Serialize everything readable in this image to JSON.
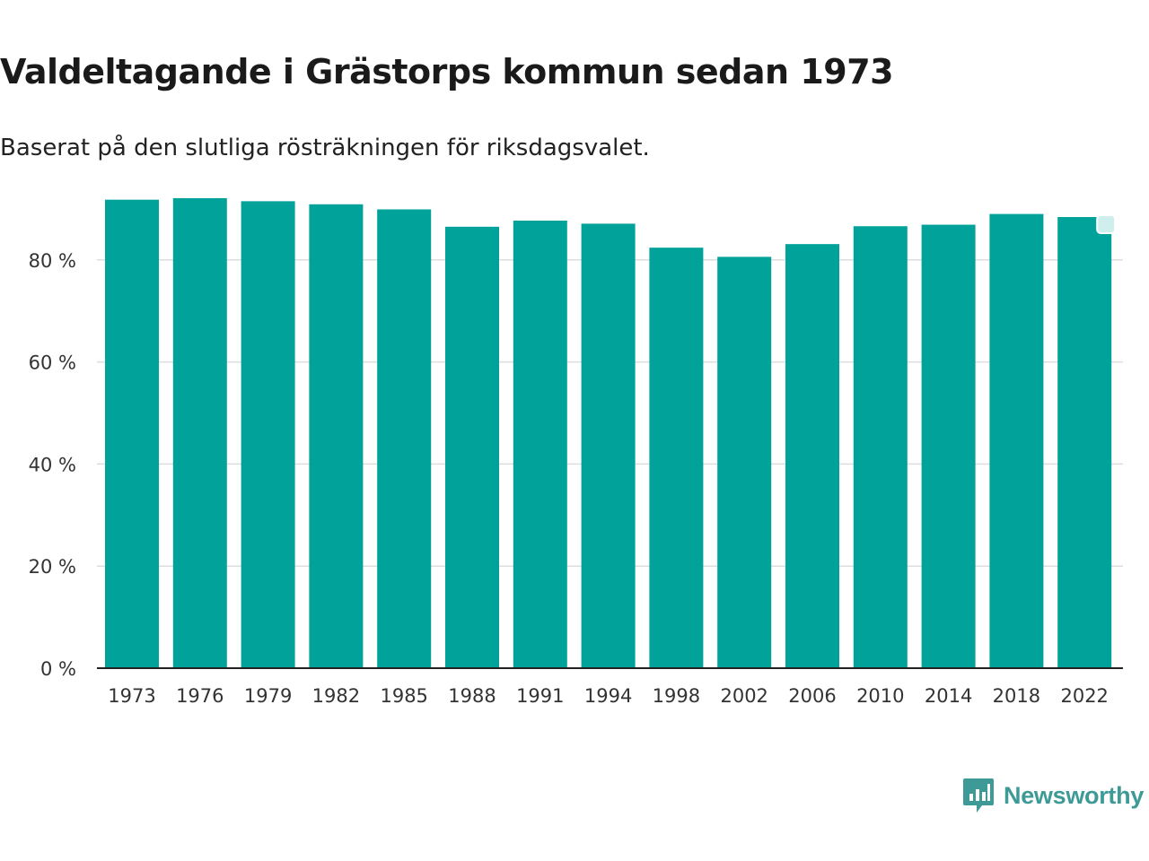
{
  "header": {
    "title": "Valdeltagande i Grästorps kommun sedan 1973",
    "subtitle": "Baserat på den slutliga rösträkningen för riksdagsvalet."
  },
  "chart_data": {
    "type": "bar",
    "categories": [
      "1973",
      "1976",
      "1979",
      "1982",
      "1985",
      "1988",
      "1991",
      "1994",
      "1998",
      "2002",
      "2006",
      "2010",
      "2014",
      "2018",
      "2022"
    ],
    "values": [
      91.8,
      92.1,
      91.5,
      90.9,
      89.9,
      86.5,
      87.7,
      87.1,
      82.4,
      80.6,
      83.1,
      86.6,
      86.9,
      89.0,
      88.4
    ],
    "title": "Valdeltagande i Grästorps kommun sedan 1973",
    "subtitle": "Baserat på den slutliga rösträkningen för riksdagsvalet.",
    "xlabel": "",
    "ylabel": "",
    "ylim": [
      0,
      100
    ],
    "yticks": [
      0,
      20,
      40,
      60,
      80
    ],
    "ytick_labels": [
      "0 %",
      "20 %",
      "40 %",
      "60 %",
      "80 %"
    ],
    "grid": true,
    "bar_color": "#00a29a",
    "gridline_color": "#dddddd"
  },
  "branding": {
    "name": "Newsworthy",
    "color": "#3d9a97",
    "icon": "newsworthy-logo-icon"
  }
}
